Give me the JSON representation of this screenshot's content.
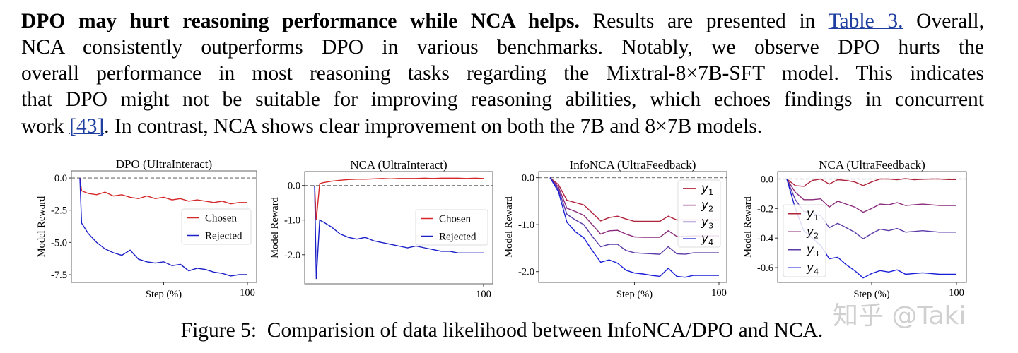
{
  "paragraph": {
    "heading": "DPO may hurt reasoning performance while NCA helps.",
    "line1_text": " Results are presented in ",
    "line1_link": "Table 3.",
    "line1_end": " Overall,",
    "line2": "NCA consistently outperforms DPO in various benchmarks. Notably, we observe DPO hurts the",
    "line3": "overall performance in most reasoning tasks regarding the Mixtral-8×7B-SFT model. This indicates",
    "line4": "that DPO might not be suitable for improving reasoning abilities, which echoes findings in concurrent",
    "line5_start": "work ",
    "line5_link": "[43]",
    "line5_end": ". In contrast, NCA shows clear improvement on both the 7B and 8×7B models."
  },
  "caption": "Figure 5:  Comparision of data likelihood between InfoNCA/DPO and NCA.",
  "watermark": "知乎 @Taki",
  "colors": {
    "link": "#1f3fa0",
    "chosen": "#d62728",
    "rejected": "#1a1fc8",
    "y1": "#b0243c",
    "y2": "#8a2a7a",
    "y3": "#5b3aa8",
    "y4": "#1a1fd6"
  },
  "chart_data": [
    {
      "type": "line",
      "title": "DPO (UltraInteract)",
      "xlabel": "Step (%)",
      "ylabel": "Model Reward",
      "xlim": [
        0,
        100
      ],
      "ylim": [
        -8.1,
        0.55
      ],
      "xticks": [
        50,
        100
      ],
      "xtick_labels": [
        "",
        "100"
      ],
      "yticks": [
        0.0,
        -2.5,
        -5.0,
        -7.5
      ],
      "ytick_labels": [
        "0.0",
        "-2.5",
        "-5.0",
        "-7.5"
      ],
      "reference_line": 0,
      "legend": "center-right",
      "x": [
        0,
        1,
        5,
        10,
        15,
        20,
        25,
        30,
        35,
        40,
        45,
        50,
        55,
        60,
        65,
        70,
        75,
        80,
        85,
        90,
        95,
        100
      ],
      "series": [
        {
          "name": "Chosen",
          "color": "#d62728",
          "values": [
            0,
            -1.0,
            -1.2,
            -1.3,
            -1.1,
            -1.4,
            -1.3,
            -1.5,
            -1.6,
            -1.4,
            -1.6,
            -1.5,
            -1.7,
            -1.6,
            -1.8,
            -1.7,
            -1.8,
            -1.9,
            -1.8,
            -2.0,
            -1.9,
            -1.9
          ]
        },
        {
          "name": "Rejected",
          "color": "#1a1fc8",
          "values": [
            0,
            -3.5,
            -4.3,
            -5.0,
            -5.5,
            -5.8,
            -6.0,
            -5.6,
            -6.3,
            -6.5,
            -6.6,
            -6.5,
            -6.8,
            -6.7,
            -7.2,
            -7.0,
            -7.1,
            -7.3,
            -7.4,
            -7.6,
            -7.5,
            -7.5
          ]
        }
      ]
    },
    {
      "type": "line",
      "title": "NCA (UltraInteract)",
      "xlabel": "",
      "ylabel": "Model Reward",
      "xlim": [
        0,
        100
      ],
      "ylim": [
        -2.84,
        0.4
      ],
      "xticks": [
        50,
        100
      ],
      "xtick_labels": [
        "",
        "100"
      ],
      "yticks": [
        0.0,
        -1.0,
        -2.0
      ],
      "ytick_labels": [
        "0.0",
        "-1.0",
        "-2.0"
      ],
      "reference_line": 0,
      "legend": "center-right",
      "x": [
        0,
        1,
        3,
        5,
        10,
        15,
        20,
        25,
        30,
        35,
        40,
        45,
        50,
        55,
        60,
        65,
        70,
        75,
        80,
        85,
        90,
        95,
        100
      ],
      "series": [
        {
          "name": "Chosen",
          "color": "#d62728",
          "values": [
            0,
            -1.0,
            0.05,
            0.08,
            0.12,
            0.15,
            0.17,
            0.18,
            0.18,
            0.19,
            0.2,
            0.19,
            0.2,
            0.2,
            0.2,
            0.21,
            0.2,
            0.21,
            0.21,
            0.21,
            0.2,
            0.21,
            0.2
          ]
        },
        {
          "name": "Rejected",
          "color": "#1a1fc8",
          "values": [
            0,
            -2.7,
            -1.0,
            -1.05,
            -1.2,
            -1.4,
            -1.5,
            -1.55,
            -1.5,
            -1.6,
            -1.65,
            -1.7,
            -1.75,
            -1.8,
            -1.75,
            -1.8,
            -1.85,
            -1.9,
            -1.9,
            -1.95,
            -1.95,
            -1.95,
            -1.95
          ]
        }
      ]
    },
    {
      "type": "line",
      "title": "InfoNCA (UltraFeedback)",
      "xlabel": "Step (%)",
      "ylabel": "Model Reward",
      "xlim": [
        0,
        100
      ],
      "ylim": [
        -2.23,
        0.13
      ],
      "xticks": [
        50,
        100
      ],
      "xtick_labels": [
        "",
        "100"
      ],
      "yticks": [
        0.0,
        -1.0,
        -2.0
      ],
      "ytick_labels": [
        "0.0",
        "-1.0",
        "-2.0"
      ],
      "reference_line": 0,
      "legend": "upper-right",
      "x": [
        0,
        5,
        10,
        15,
        20,
        25,
        30,
        35,
        40,
        45,
        50,
        55,
        60,
        65,
        70,
        75,
        80,
        85,
        90,
        95,
        100
      ],
      "series": [
        {
          "name": "y1",
          "color": "#b0243c",
          "values": [
            0,
            -0.15,
            -0.48,
            -0.53,
            -0.58,
            -0.75,
            -0.92,
            -0.85,
            -0.82,
            -0.88,
            -0.93,
            -0.93,
            -0.93,
            -0.93,
            -0.82,
            -0.9,
            -0.9,
            -0.9,
            -0.9,
            -0.9,
            -0.9
          ]
        },
        {
          "name": "y2",
          "color": "#8a2a7a",
          "values": [
            0,
            -0.2,
            -0.65,
            -0.72,
            -0.8,
            -1.0,
            -1.2,
            -1.13,
            -1.12,
            -1.2,
            -1.26,
            -1.27,
            -1.27,
            -1.27,
            -1.13,
            -1.25,
            -1.25,
            -1.24,
            -1.24,
            -1.24,
            -1.24
          ]
        },
        {
          "name": "y3",
          "color": "#5b3aa8",
          "values": [
            0,
            -0.25,
            -0.78,
            -0.9,
            -1.0,
            -1.25,
            -1.47,
            -1.42,
            -1.42,
            -1.55,
            -1.6,
            -1.61,
            -1.62,
            -1.63,
            -1.47,
            -1.62,
            -1.63,
            -1.6,
            -1.6,
            -1.6,
            -1.6
          ]
        },
        {
          "name": "y4",
          "color": "#1a1fd6",
          "values": [
            0,
            -0.3,
            -0.95,
            -1.15,
            -1.28,
            -1.55,
            -1.8,
            -1.75,
            -1.82,
            -1.97,
            -2.03,
            -2.05,
            -2.08,
            -2.1,
            -1.93,
            -2.1,
            -2.12,
            -2.08,
            -2.08,
            -2.08,
            -2.08
          ]
        }
      ]
    },
    {
      "type": "line",
      "title": "NCA (UltraFeedback)",
      "xlabel": "Step (%)",
      "ylabel": "Model Reward",
      "xlim": [
        0,
        100
      ],
      "ylim": [
        -0.7,
        0.05
      ],
      "xticks": [
        50,
        100
      ],
      "xtick_labels": [
        "",
        "100"
      ],
      "yticks": [
        0.0,
        -0.2,
        -0.4,
        -0.6
      ],
      "ytick_labels": [
        "0.0",
        "-0.2",
        "-0.4",
        "-0.6"
      ],
      "reference_line": 0,
      "legend": "center-left",
      "x": [
        0,
        5,
        10,
        15,
        20,
        25,
        30,
        35,
        40,
        45,
        50,
        55,
        60,
        65,
        70,
        75,
        80,
        85,
        90,
        95,
        100
      ],
      "series": [
        {
          "name": "y1",
          "color": "#b0243c",
          "values": [
            0,
            -0.045,
            -0.05,
            -0.01,
            0,
            -0.035,
            -0.005,
            -0.01,
            -0.02,
            -0.045,
            -0.02,
            0,
            0,
            -0.005,
            0.002,
            -0.005,
            -0.002,
            0,
            0,
            -0.004,
            -0.004
          ]
        },
        {
          "name": "y2",
          "color": "#8a2a7a",
          "values": [
            0,
            -0.09,
            -0.14,
            -0.14,
            -0.135,
            -0.19,
            -0.15,
            -0.17,
            -0.19,
            -0.225,
            -0.2,
            -0.17,
            -0.175,
            -0.16,
            -0.18,
            -0.175,
            -0.17,
            -0.175,
            -0.18,
            -0.18,
            -0.18
          ]
        },
        {
          "name": "y3",
          "color": "#5b3aa8",
          "values": [
            0,
            -0.14,
            -0.22,
            -0.23,
            -0.25,
            -0.33,
            -0.3,
            -0.33,
            -0.36,
            -0.405,
            -0.37,
            -0.34,
            -0.35,
            -0.335,
            -0.36,
            -0.355,
            -0.35,
            -0.355,
            -0.36,
            -0.36,
            -0.36
          ]
        },
        {
          "name": "y4",
          "color": "#1a1fd6",
          "values": [
            0,
            -0.2,
            -0.35,
            -0.4,
            -0.45,
            -0.54,
            -0.53,
            -0.58,
            -0.62,
            -0.67,
            -0.64,
            -0.62,
            -0.63,
            -0.615,
            -0.645,
            -0.64,
            -0.635,
            -0.64,
            -0.645,
            -0.645,
            -0.645
          ]
        }
      ]
    }
  ]
}
